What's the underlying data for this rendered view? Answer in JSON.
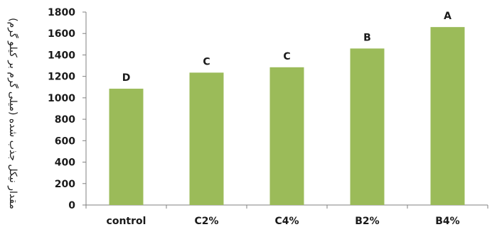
{
  "chart_data": {
    "type": "bar",
    "categories": [
      "control",
      "C2%",
      "C4%",
      "B2%",
      "B4%"
    ],
    "values": [
      1085,
      1235,
      1285,
      1460,
      1660
    ],
    "data_labels": [
      "D",
      "C",
      "C",
      "B",
      "A"
    ],
    "ylabel": "مقدار نیکل جذب شده (میلی گرم بر کیلو گرم)",
    "ylim": [
      0,
      1800
    ],
    "yticks": [
      0,
      200,
      400,
      600,
      800,
      1000,
      1200,
      1400,
      1600,
      1800
    ],
    "grid": false,
    "bar_color": "#9bbb59",
    "axis_color": "#808080"
  }
}
